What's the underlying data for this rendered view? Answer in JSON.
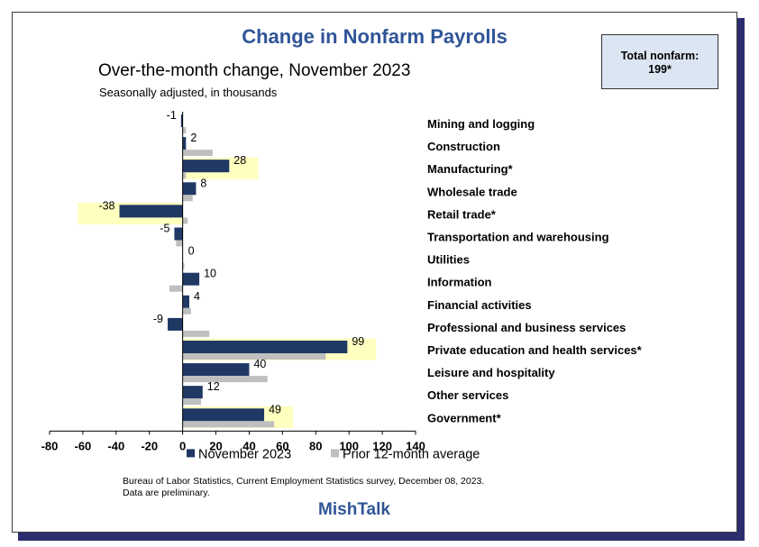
{
  "header": {
    "title": "Change in Nonfarm Payrolls",
    "subtitle": "Over-the-month change, November 2023",
    "note": "Seasonally adjusted, in thousands"
  },
  "total_box": {
    "label": "Total nonfarm:",
    "value": "199*"
  },
  "footer": {
    "source": "Bureau of Labor Statistics, Current Employment Statistics survey, December 08, 2023.",
    "preliminary": "Data are preliminary.",
    "brand": "MishTalk"
  },
  "colors": {
    "current": "#1f3864",
    "prior": "#bfbfbf",
    "highlight": "#ffffc0",
    "title": "#2f5597"
  },
  "chart_data": {
    "type": "bar",
    "orientation": "horizontal",
    "title": "Change in Nonfarm Payrolls",
    "subtitle": "Over-the-month change, November 2023",
    "ylabel": "Seasonally adjusted, in thousands",
    "xlim": [
      -80,
      140
    ],
    "xticks": [
      -80,
      -60,
      -40,
      -20,
      0,
      20,
      40,
      60,
      80,
      100,
      120,
      140
    ],
    "categories": [
      "Mining and logging",
      "Construction",
      "Manufacturing*",
      "Wholesale trade",
      "Retail trade*",
      "Transportation and warehousing",
      "Utilities",
      "Information",
      "Financial activities",
      "Professional and business services",
      "Private education and health services*",
      "Leisure and hospitality",
      "Other services",
      "Government*"
    ],
    "highlighted": [
      "Manufacturing*",
      "Retail trade*",
      "Private education and health services*",
      "Government*"
    ],
    "series": [
      {
        "name": "November 2023",
        "values": [
          -1,
          2,
          28,
          8,
          -38,
          -5,
          0,
          10,
          4,
          -9,
          99,
          40,
          12,
          49
        ]
      },
      {
        "name": "Prior 12-month average",
        "values": [
          2,
          18,
          2,
          6,
          3,
          -4,
          1,
          -8,
          5,
          16,
          86,
          51,
          11,
          55
        ]
      }
    ],
    "value_labels": [
      "-1",
      "2",
      "28",
      "8",
      "-38",
      "-5",
      "0",
      "10",
      "4",
      "-9",
      "99",
      "40",
      "12",
      "49"
    ],
    "legend": [
      "November 2023",
      "Prior 12-month average"
    ],
    "legend_position": "bottom"
  }
}
